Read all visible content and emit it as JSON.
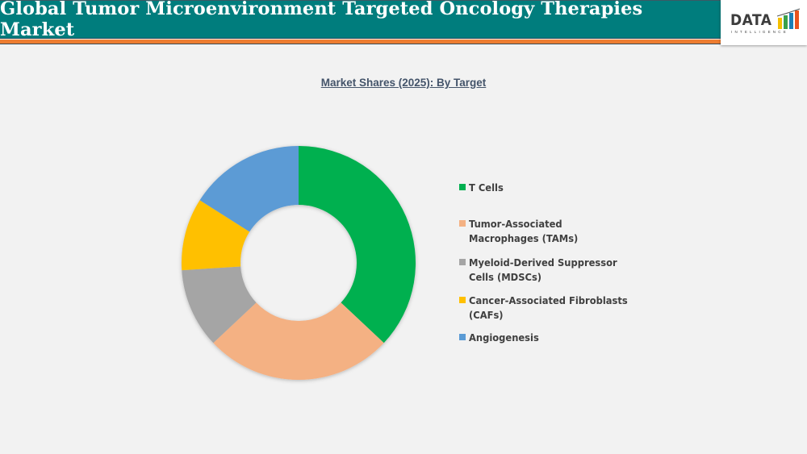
{
  "header": {
    "title": "Global Tumor Microenvironment Targeted Oncology Therapies Market",
    "logo_text": "DATA",
    "logo_subtext": "INTELLIGENCE"
  },
  "colors": {
    "header_bg": "#007d7d",
    "accent_bar": "#ed7d31",
    "background": "#f2f2f2"
  },
  "chart_data": {
    "type": "pie",
    "subtype": "donut",
    "title": "Market Shares (2025): By Target",
    "categories": [
      "T Cells",
      "Tumor-Associated Macrophages (TAMs)",
      "Myeloid-Derived Suppressor Cells (MDSCs)",
      "Cancer-Associated Fibroblasts (CAFs)",
      "Angiogenesis"
    ],
    "values": [
      37,
      26,
      11,
      10,
      16
    ],
    "colors": [
      "#00b050",
      "#f4b183",
      "#a5a5a5",
      "#ffc000",
      "#5b9bd5"
    ],
    "legend_position": "right",
    "data_labels": false
  },
  "legend": {
    "items": [
      {
        "label": "T Cells",
        "color": "#00b050"
      },
      {
        "label": "Tumor-Associated\nMacrophages (TAMs)",
        "color": "#f4b183"
      },
      {
        "label": "Myeloid-Derived Suppressor\nCells (MDSCs)",
        "color": "#a5a5a5"
      },
      {
        "label": "Cancer-Associated Fibroblasts\n(CAFs)",
        "color": "#ffc000"
      },
      {
        "label": " Angiogenesis",
        "color": "#5b9bd5"
      }
    ]
  }
}
